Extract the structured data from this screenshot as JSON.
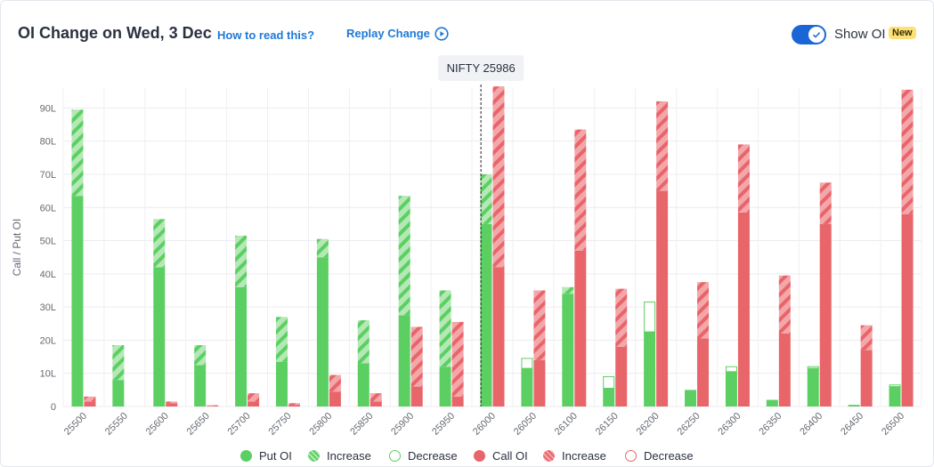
{
  "header": {
    "title": "OI Change on Wed, 3 Dec",
    "how_to_label": "How to read this?",
    "replay_label": "Replay Change",
    "show_oi_label": "Show OI",
    "show_oi_on": true,
    "new_badge": "New"
  },
  "colors": {
    "put": "#5ccf63",
    "put_light": "#b4e8b5",
    "call": "#e8656a",
    "call_light": "#f4a7aa",
    "accent": "#1a66d6",
    "badge": "#fde07a",
    "link": "#1f79d6"
  },
  "icons": {
    "replay": "play-circle-icon",
    "toggle": "check-icon"
  },
  "chart_data": {
    "type": "bar",
    "ylabel": "Call / Put OI",
    "ylim": [
      0,
      96
    ],
    "yticks": [
      0,
      10,
      20,
      30,
      40,
      50,
      60,
      70,
      80,
      90
    ],
    "ytick_labels": [
      "0",
      "10L",
      "20L",
      "30L",
      "40L",
      "50L",
      "60L",
      "70L",
      "80L",
      "90L"
    ],
    "grid": true,
    "spot_label": "NIFTY 25986",
    "spot_value": 25986,
    "categories": [
      "25500",
      "25550",
      "25600",
      "25650",
      "25700",
      "25750",
      "25800",
      "25850",
      "25900",
      "25950",
      "26000",
      "26050",
      "26100",
      "26150",
      "26200",
      "26250",
      "26300",
      "26350",
      "26400",
      "26450",
      "26500"
    ],
    "series": [
      {
        "name": "Put OI",
        "values": [
          63.5,
          8,
          42,
          12.5,
          36,
          13.5,
          45,
          13,
          27.5,
          12,
          55,
          11.5,
          34,
          5.5,
          22.5,
          5,
          10.5,
          2,
          11.5,
          0.5,
          6
        ]
      },
      {
        "name": "Increase",
        "values": [
          26,
          10.5,
          14.5,
          6,
          15.5,
          13.5,
          5.5,
          13,
          36,
          23,
          15,
          0,
          2,
          0,
          0,
          0,
          0,
          0,
          0,
          0,
          0
        ]
      },
      {
        "name": "Decrease",
        "values": [
          0,
          0,
          0,
          0,
          0,
          0,
          0,
          0,
          0,
          0,
          0,
          3,
          0,
          3.5,
          9,
          0,
          1.5,
          0,
          0.5,
          0,
          0.5
        ]
      },
      {
        "name": "Call OI",
        "values": [
          1.5,
          0,
          1,
          0.2,
          1.5,
          0.5,
          4.5,
          1.5,
          6,
          3,
          42,
          14,
          47,
          18,
          65,
          20.5,
          58.5,
          22,
          55,
          17,
          58
        ]
      },
      {
        "name": "Increase",
        "values": [
          1.5,
          0,
          0.5,
          0.2,
          2.5,
          0.5,
          5,
          2.5,
          18,
          22.5,
          54.5,
          21,
          36.5,
          17.5,
          27,
          17,
          20.5,
          17.5,
          12.5,
          7.5,
          37.5
        ]
      },
      {
        "name": "Decrease",
        "values": [
          0,
          0,
          0,
          0,
          0,
          0,
          0,
          0,
          0,
          0,
          0,
          0,
          0,
          0,
          0,
          0,
          0,
          0,
          0,
          0,
          0
        ]
      }
    ],
    "legend": {
      "position": "bottom-center",
      "items": [
        "Put OI",
        "Increase",
        "Decrease",
        "Call OI",
        "Increase",
        "Decrease"
      ]
    }
  }
}
